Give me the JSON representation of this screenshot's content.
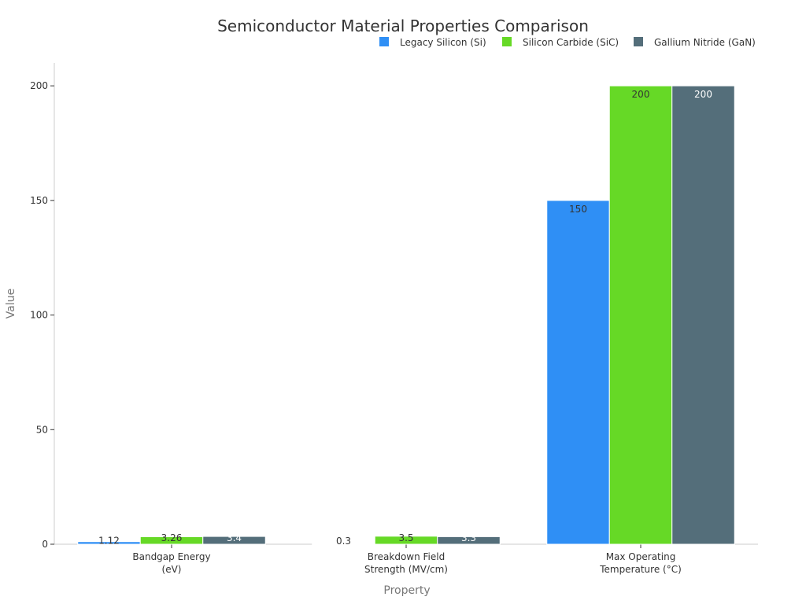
{
  "chart_data": {
    "type": "bar",
    "title": "Semiconductor Material Properties Comparison",
    "xlabel": "Property",
    "ylabel": "Value",
    "categories": [
      [
        "Bandgap Energy",
        "(eV)"
      ],
      [
        "Breakdown Field",
        "Strength (MV/cm)"
      ],
      [
        "Max Operating",
        "Temperature (°C)"
      ]
    ],
    "series": [
      {
        "name": "Legacy Silicon (Si)",
        "color": "#2f8ff5",
        "values": [
          1.12,
          0.3,
          150
        ],
        "labels": [
          "1.12",
          "0.3",
          "150"
        ],
        "label_color": "#333333"
      },
      {
        "name": "Silicon Carbide (SiC)",
        "color": "#66d926",
        "values": [
          3.26,
          3.5,
          200
        ],
        "labels": [
          "3.26",
          "3.5",
          "200"
        ],
        "label_color": "#333333"
      },
      {
        "name": "Gallium Nitride (GaN)",
        "color": "#546e7a",
        "values": [
          3.4,
          3.3,
          200
        ],
        "labels": [
          "3.4",
          "3.3",
          "200"
        ],
        "label_color": "#ffffff"
      }
    ],
    "ylim": [
      0,
      210
    ],
    "yticks": [
      0,
      50,
      100,
      150,
      200
    ],
    "grid": false,
    "legend_position": "top-right"
  }
}
